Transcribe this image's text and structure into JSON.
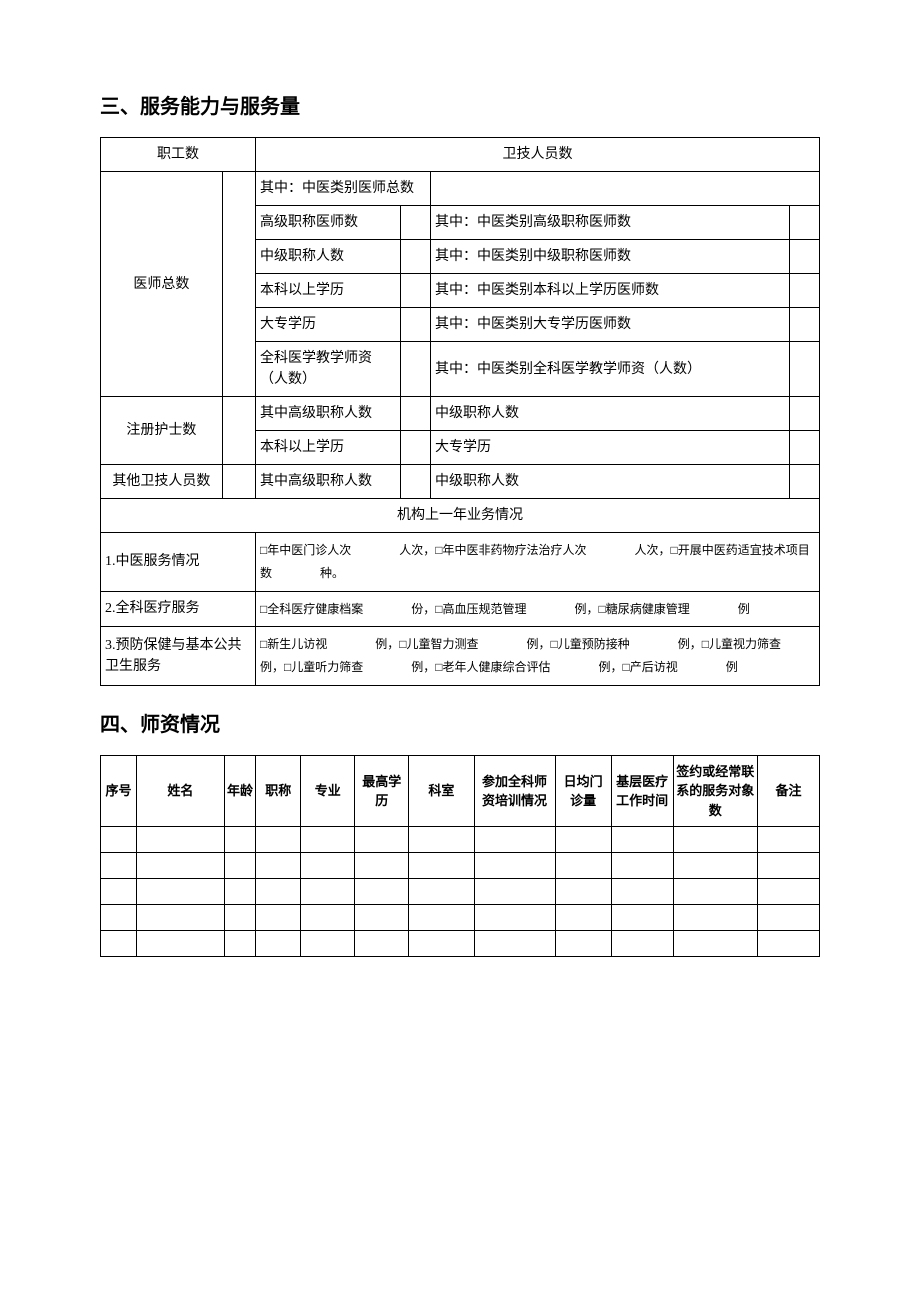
{
  "section3": {
    "title": "三、服务能力与服务量",
    "row0": {
      "staff_count": "职工数",
      "health_tech_count": "卫技人员数"
    },
    "doctors": {
      "label": "医师总数",
      "rows": [
        {
          "a": "其中：中医类别医师总数",
          "b": ""
        },
        {
          "a": "高级职称医师数",
          "b": "其中：中医类别高级职称医师数"
        },
        {
          "a": "中级职称人数",
          "b": "其中：中医类别中级职称医师数"
        },
        {
          "a": "本科以上学历",
          "b": "其中：中医类别本科以上学历医师数"
        },
        {
          "a": "大专学历",
          "b": "其中：中医类别大专学历医师数"
        },
        {
          "a": "全科医学教学师资（人数）",
          "b": "其中：中医类别全科医学教学师资（人数）"
        }
      ]
    },
    "nurses": {
      "label": "注册护士数",
      "rows": [
        {
          "a": "其中高级职称人数",
          "b": "中级职称人数"
        },
        {
          "a": "本科以上学历",
          "b": "大专学历"
        }
      ]
    },
    "others": {
      "label": "其他卫技人员数",
      "a": "其中高级职称人数",
      "b": "中级职称人数"
    },
    "biz_header": "机构上一年业务情况",
    "biz": [
      {
        "label": "1.中医服务情况",
        "text": "□年中医门诊人次　　　　人次，□年中医非药物疗法治疗人次　　　　人次，□开展中医药适宜技术项目数　　　　种。"
      },
      {
        "label": "2.全科医疗服务",
        "text": "□全科医疗健康档案　　　　份，□高血压规范管理　　　　例，□糖尿病健康管理　　　　例"
      },
      {
        "label": "3.预防保健与基本公共卫生服务",
        "text": "□新生儿访视　　　　例，□儿童智力测查　　　　例，□儿童预防接种　　　　例，□儿童视力筛查　　　　例，□儿童听力筛查　　　　例，□老年人健康综合评估　　　　例，□产后访视　　　　例"
      }
    ]
  },
  "section4": {
    "title": "四、师资情况",
    "headers": [
      "序号",
      "姓名",
      "年龄",
      "职称",
      "专业",
      "最高学历",
      "科室",
      "参加全科师资培训情况",
      "日均门诊量",
      "基层医疗工作时间",
      "签约或经常联系的服务对象数",
      "备注"
    ],
    "empty_rows": 5
  }
}
